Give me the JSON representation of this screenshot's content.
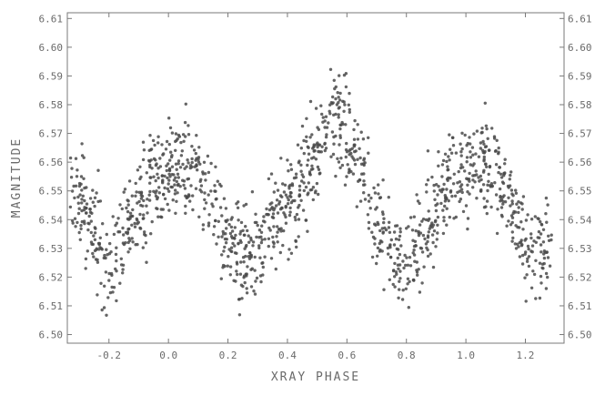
{
  "chart_data": {
    "type": "scatter",
    "xlabel": "XRAY PHASE",
    "ylabel": "MAGNITUDE",
    "xlim": [
      -0.34,
      1.33
    ],
    "ylim": [
      6.612,
      6.497
    ],
    "y_inverted": true,
    "right_axis_mirrors_left": true,
    "x_ticks": [
      -0.2,
      0.0,
      0.2,
      0.4,
      0.6,
      0.8,
      1.0,
      1.2
    ],
    "x_tick_labels": [
      "-0.2",
      "0.0",
      "0.2",
      "0.4",
      "0.6",
      "0.8",
      "1.0",
      "1.2"
    ],
    "y_ticks": [
      6.5,
      6.51,
      6.52,
      6.53,
      6.54,
      6.55,
      6.56,
      6.57,
      6.58,
      6.59,
      6.6,
      6.61
    ],
    "y_tick_labels": [
      "6.50",
      "6.51",
      "6.52",
      "6.53",
      "6.54",
      "6.55",
      "6.56",
      "6.57",
      "6.58",
      "6.59",
      "6.60",
      "6.61"
    ],
    "grid": false,
    "legend": "none",
    "marker_color": "#4a4a4a",
    "light_curve_profile": {
      "phase": [
        -0.32,
        -0.25,
        -0.2,
        -0.15,
        -0.1,
        -0.05,
        0.0,
        0.05,
        0.1,
        0.15,
        0.2,
        0.25,
        0.3,
        0.35,
        0.4,
        0.45,
        0.5,
        0.55,
        0.6,
        0.65,
        0.7,
        0.75,
        0.8,
        0.85,
        0.9,
        0.95,
        1.0,
        1.05,
        1.1,
        1.15,
        1.2,
        1.25,
        1.3
      ],
      "magnitude": [
        6.553,
        6.535,
        6.525,
        6.533,
        6.545,
        6.552,
        6.557,
        6.56,
        6.557,
        6.545,
        6.533,
        6.527,
        6.53,
        6.538,
        6.545,
        6.553,
        6.562,
        6.578,
        6.572,
        6.557,
        6.54,
        6.528,
        6.524,
        6.532,
        6.545,
        6.553,
        6.557,
        6.56,
        6.557,
        6.545,
        6.532,
        6.527,
        6.53
      ]
    },
    "point_count": 1400,
    "point_scatter_sd": 0.0085
  }
}
